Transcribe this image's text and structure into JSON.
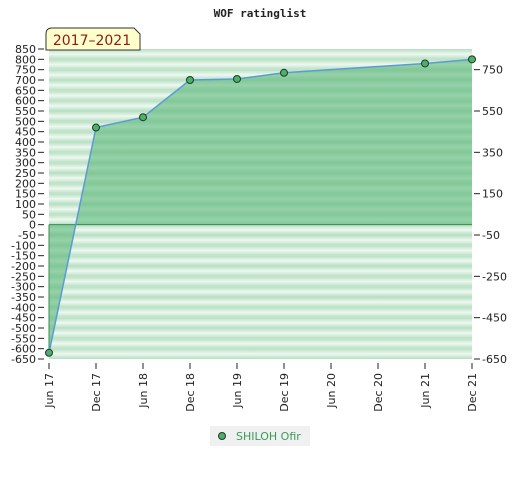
{
  "chart_data": {
    "type": "area",
    "title": "WOF ratinglist",
    "period_badge": "2017–2021",
    "categories": [
      "Jun 17",
      "Dec 17",
      "Jun 18",
      "Dec 18",
      "Jun 19",
      "Dec 19",
      "Jun 20",
      "Dec 20",
      "Jun 21",
      "Dec 21"
    ],
    "series": [
      {
        "name": "SHILOH Ofir",
        "points": [
          {
            "x": "Jun 17",
            "y": -620
          },
          {
            "x": "Dec 17",
            "y": 470
          },
          {
            "x": "Jun 18",
            "y": 520
          },
          {
            "x": "Dec 18",
            "y": 700
          },
          {
            "x": "Jun 19",
            "y": 705
          },
          {
            "x": "Dec 19",
            "y": 735
          },
          {
            "x": "Jun 21",
            "y": 780
          },
          {
            "x": "Dec 21",
            "y": 800
          }
        ]
      }
    ],
    "ylim": [
      -650,
      850
    ],
    "left_ticks": [
      850,
      800,
      750,
      700,
      650,
      600,
      550,
      500,
      450,
      400,
      350,
      300,
      250,
      200,
      150,
      100,
      50,
      0,
      -50,
      -100,
      -150,
      -200,
      -250,
      -300,
      -350,
      -400,
      -450,
      -500,
      -550,
      -600,
      -650
    ],
    "right_ticks": [
      750,
      550,
      350,
      150,
      -50,
      -250,
      -450,
      -650
    ],
    "legend_position": "bottom-center",
    "colors": {
      "line": "#5b9bd5",
      "fill": "#5cb87a",
      "marker": "#4caf6a",
      "band_dark": "#bfe2c8",
      "band_light": "#f2faf4",
      "badge_bg": "#ffffcc"
    }
  }
}
